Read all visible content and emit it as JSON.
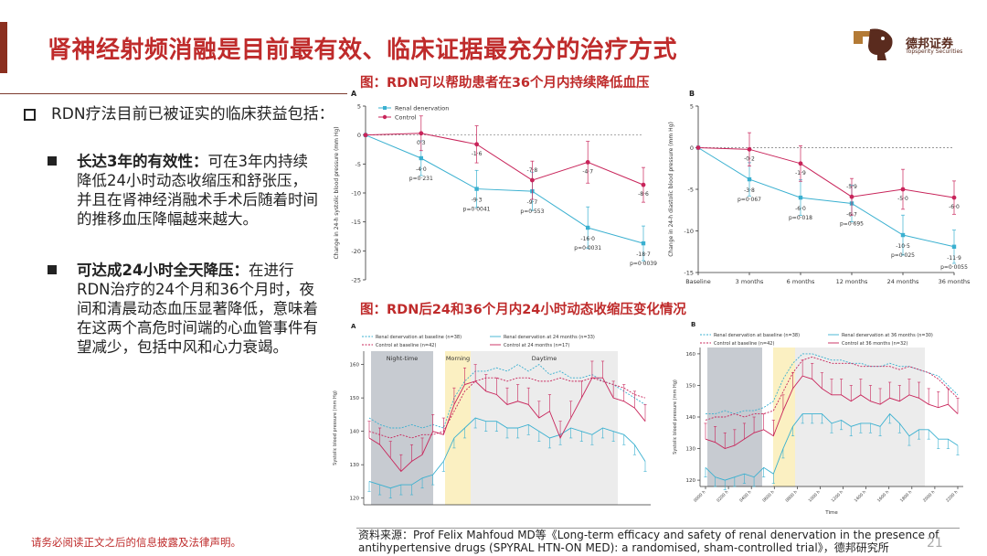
{
  "title": "肾神经射频消融是目前最有效、临床证据最充分的治疗方式",
  "logo": {
    "name": "德邦证券",
    "sub": "Topsperity Securities"
  },
  "main_bullet": "RDN疗法目前已被证实的临床获益包括：",
  "sub_bullets": [
    {
      "bold": "长达3年的有效性：",
      "text": "可在3年内持续降低24小时动态收缩压和舒张压，并且在肾神经消融术手术后随着时间的推移血压降幅越来越大。"
    },
    {
      "bold": "可达成24小时全天降压：",
      "text": "在进行RDN治疗的24个月和36个月时，夜间和清晨动态血压显著降低，意味着在这两个高危时间端的心血管事件有望减少，包括中风和心力衰竭。"
    }
  ],
  "caption1": "图：RDN可以帮助患者在36个月内持续降低血压",
  "caption2": "图：RDN后24和36个月内24小时动态收缩压变化情况",
  "footer_left": "请务必阅读正文之后的信息披露及法律声明。",
  "footer_source": "资料来源：Prof Felix Mahfoud MD等《Long-term efficacy and safety of renal denervation in the presence of antihypertensive drugs (SPYRAL HTN-ON MED): a randomised, sham-controlled trial》，德邦研究所",
  "page_number": "21",
  "colors": {
    "rdn": "#3ab0d0",
    "control": "#c8245a",
    "title": "#bf2b2b"
  },
  "chart_data": [
    {
      "type": "line",
      "panel": "A",
      "x": [
        "Baseline",
        "3 months",
        "6 months",
        "12 months",
        "24 months",
        "36 months"
      ],
      "ylabel": "Change in 24-h systolic blood pressure (mm Hg)",
      "ylim": [
        -25,
        5
      ],
      "yticks": [
        5,
        0,
        -5,
        -10,
        -15,
        -20,
        -25
      ],
      "series": [
        {
          "name": "Renal denervation",
          "values": [
            0,
            -4.0,
            -9.3,
            -9.7,
            -16.0,
            -18.7
          ],
          "labels": [
            "",
            "-4·0",
            "-9·3",
            "-9·7",
            "-16·0",
            "-18·7"
          ],
          "pvalues": [
            "",
            "p=0·231",
            "p=0·0041",
            "p=0·553",
            "p=0·0031",
            "p=0·0039"
          ]
        },
        {
          "name": "Control",
          "values": [
            0,
            0.3,
            -1.6,
            -7.8,
            -4.7,
            -8.6
          ],
          "labels": [
            "",
            "0·3",
            "-1·6",
            "-7·8",
            "-4·7",
            "-8·6"
          ]
        }
      ]
    },
    {
      "type": "line",
      "panel": "B",
      "x": [
        "Baseline",
        "3 months",
        "6 months",
        "12 months",
        "24 months",
        "36 months"
      ],
      "ylabel": "Change in 24-h diastolic blood pressure (mm Hg)",
      "ylim": [
        -15,
        5
      ],
      "yticks": [
        5,
        0,
        -5,
        -10,
        -15
      ],
      "series": [
        {
          "name": "Renal denervation",
          "values": [
            0,
            -3.8,
            -6.0,
            -6.7,
            -10.5,
            -11.9
          ],
          "labels": [
            "",
            "-3·8",
            "-6·0",
            "-6·7",
            "-10·5",
            "-11·9"
          ],
          "pvalues": [
            "",
            "p=0·067",
            "p=0·018",
            "p=0·695",
            "p=0·025",
            "p=0·0055"
          ]
        },
        {
          "name": "Control",
          "values": [
            0,
            -0.2,
            -1.9,
            -5.9,
            -5.0,
            -6.0
          ],
          "labels": [
            "",
            "-0·2",
            "-1·9",
            "-5·9",
            "-5·0",
            "-6·0"
          ]
        }
      ]
    },
    {
      "type": "line",
      "panel": "A",
      "ylabel": "Systolic blood pressure (mm Hg)",
      "ylim": [
        118,
        164
      ],
      "yticks": [
        160,
        150,
        140,
        130,
        120
      ],
      "bands": [
        "Night-time",
        "Morning",
        "Daytime"
      ],
      "legend": [
        "Renal denervation at baseline (n=38)",
        "Control at baseline (n=42)",
        "Renal denervation at 24 months (n=33)",
        "Control at 24 months (n=17)"
      ],
      "series": [
        {
          "name": "Renal denervation at baseline (n=38)",
          "values": [
            144,
            142,
            141,
            141,
            142,
            141,
            142,
            141,
            150,
            155,
            158,
            158,
            159,
            158,
            160,
            158,
            160,
            157,
            158,
            156,
            156,
            157,
            155,
            154,
            152,
            150,
            148
          ]
        },
        {
          "name": "Control at baseline (n=42)",
          "values": [
            140,
            139,
            138,
            139,
            138,
            139,
            139,
            140,
            146,
            152,
            155,
            156,
            156,
            155,
            156,
            156,
            155,
            155,
            156,
            155,
            155,
            156,
            155,
            154,
            153,
            151,
            150
          ]
        },
        {
          "name": "Renal denervation at 24 months (n=33)",
          "values": [
            125,
            124,
            123,
            124,
            124,
            126,
            127,
            131,
            138,
            141,
            144,
            143,
            143,
            141,
            141,
            142,
            140,
            138,
            139,
            141,
            140,
            139,
            141,
            140,
            139,
            136,
            131
          ]
        },
        {
          "name": "Control at 24 months (n=17)",
          "values": [
            138,
            136,
            132,
            128,
            131,
            133,
            140,
            139,
            148,
            154,
            155,
            152,
            151,
            148,
            149,
            148,
            144,
            146,
            138,
            144,
            150,
            156,
            156,
            150,
            149,
            147,
            143
          ]
        }
      ]
    },
    {
      "type": "line",
      "panel": "B",
      "ylabel": "Systolic blood pressure (mm Hg)",
      "xlabel": "Time",
      "ylim": [
        118,
        162
      ],
      "yticks": [
        160,
        150,
        140,
        130,
        120
      ],
      "xticks": [
        "0000 h",
        "0200 h",
        "0400 h",
        "0600 h",
        "0800 h",
        "1000 h",
        "1200 h",
        "1400 h",
        "1600 h",
        "1800 h",
        "2000 h",
        "2200 h"
      ],
      "legend": [
        "Renal denervation at baseline (n=38)",
        "Control at baseline (n=42)",
        "Renal denervation at 36 months (n=30)",
        "Control at 36 months (n=32)"
      ],
      "series": [
        {
          "name": "Renal denervation at baseline (n=38)",
          "values": [
            141,
            141,
            142,
            141,
            142,
            142,
            143,
            145,
            152,
            157,
            160,
            160,
            159,
            158,
            158,
            157,
            157,
            156,
            156,
            157,
            156,
            156,
            155,
            154,
            153,
            150,
            147
          ]
        },
        {
          "name": "Control at baseline (n=42)",
          "values": [
            139,
            140,
            140,
            141,
            140,
            141,
            141,
            142,
            148,
            154,
            158,
            159,
            158,
            157,
            157,
            157,
            156,
            156,
            156,
            156,
            155,
            156,
            155,
            154,
            152,
            149,
            146
          ]
        },
        {
          "name": "Renal denervation at 36 months (n=30)",
          "values": [
            124,
            121,
            120,
            121,
            122,
            121,
            124,
            122,
            130,
            137,
            141,
            141,
            141,
            138,
            139,
            137,
            138,
            138,
            137,
            141,
            138,
            134,
            136,
            136,
            133,
            133,
            131
          ]
        },
        {
          "name": "Control at 36 months (n=32)",
          "values": [
            133,
            132,
            130,
            131,
            133,
            135,
            136,
            134,
            142,
            149,
            153,
            152,
            149,
            147,
            147,
            145,
            147,
            145,
            144,
            146,
            145,
            147,
            146,
            144,
            143,
            144,
            141
          ]
        }
      ]
    }
  ]
}
